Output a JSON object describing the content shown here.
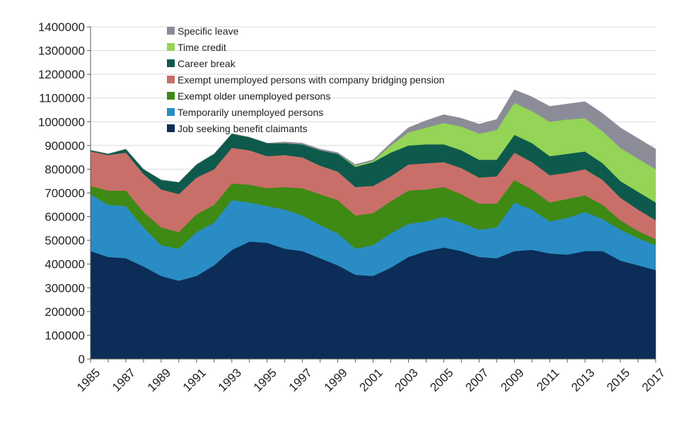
{
  "chart_data": {
    "type": "area",
    "stacked": true,
    "title": "",
    "xlabel": "",
    "ylabel": "",
    "x": [
      1985,
      1986,
      1987,
      1988,
      1989,
      1990,
      1991,
      1992,
      1993,
      1994,
      1995,
      1996,
      1997,
      1998,
      1999,
      2000,
      2001,
      2002,
      2003,
      2004,
      2005,
      2006,
      2007,
      2008,
      2009,
      2010,
      2011,
      2012,
      2013,
      2014,
      2015,
      2016,
      2017
    ],
    "x_tick_labels": [
      "1985",
      "1987",
      "1989",
      "1991",
      "1993",
      "1995",
      "1997",
      "1999",
      "2001",
      "2003",
      "2005",
      "2007",
      "2009",
      "2011",
      "2013",
      "2015",
      "2017"
    ],
    "ylim": [
      0,
      1400000
    ],
    "y_ticks": [
      0,
      100000,
      200000,
      300000,
      400000,
      500000,
      600000,
      700000,
      800000,
      900000,
      1000000,
      1100000,
      1200000,
      1300000,
      1400000
    ],
    "y_tick_labels": [
      "0",
      "100000",
      "200000",
      "300000",
      "400000",
      "500000",
      "600000",
      "700000",
      "800000",
      "900000",
      "1000000",
      "1100000",
      "1200000",
      "1300000",
      "1400000"
    ],
    "legend_position": "top-center",
    "series": [
      {
        "name": "Job seeking benefit claimants",
        "color": "#0b2d57",
        "values": [
          455000,
          430000,
          425000,
          390000,
          350000,
          330000,
          350000,
          395000,
          460000,
          495000,
          490000,
          465000,
          455000,
          425000,
          395000,
          355000,
          350000,
          385000,
          430000,
          455000,
          470000,
          455000,
          430000,
          425000,
          455000,
          460000,
          445000,
          440000,
          455000,
          455000,
          415000,
          395000,
          375000
        ]
      },
      {
        "name": "Temporarily unemployed persons",
        "color": "#2a8cc4",
        "values": [
          240000,
          220000,
          220000,
          165000,
          130000,
          135000,
          185000,
          180000,
          210000,
          165000,
          155000,
          165000,
          150000,
          140000,
          135000,
          110000,
          130000,
          145000,
          140000,
          125000,
          130000,
          120000,
          115000,
          130000,
          205000,
          170000,
          135000,
          155000,
          165000,
          135000,
          130000,
          115000,
          105000
        ]
      },
      {
        "name": "Exempt older unemployed persons",
        "color": "#3e8a14",
        "values": [
          35000,
          60000,
          65000,
          65000,
          75000,
          70000,
          75000,
          75000,
          70000,
          75000,
          75000,
          95000,
          115000,
          130000,
          140000,
          140000,
          135000,
          135000,
          140000,
          135000,
          125000,
          120000,
          110000,
          100000,
          95000,
          85000,
          80000,
          80000,
          70000,
          60000,
          40000,
          30000,
          25000
        ]
      },
      {
        "name": "Exempt unemployed persons with company bridging pension",
        "color": "#c96f69",
        "values": [
          145000,
          150000,
          160000,
          160000,
          160000,
          160000,
          155000,
          150000,
          150000,
          145000,
          135000,
          135000,
          130000,
          120000,
          120000,
          120000,
          115000,
          105000,
          110000,
          110000,
          105000,
          110000,
          110000,
          115000,
          115000,
          115000,
          115000,
          110000,
          110000,
          105000,
          95000,
          90000,
          80000
        ]
      },
      {
        "name": "Career break",
        "color": "#0d5a4c",
        "values": [
          5000,
          5000,
          15000,
          20000,
          40000,
          50000,
          55000,
          65000,
          60000,
          55000,
          55000,
          50000,
          55000,
          65000,
          75000,
          85000,
          100000,
          100000,
          80000,
          80000,
          75000,
          75000,
          75000,
          70000,
          75000,
          80000,
          80000,
          80000,
          75000,
          70000,
          70000,
          75000,
          75000
        ]
      },
      {
        "name": "Time credit",
        "color": "#94d456",
        "values": [
          0,
          0,
          0,
          0,
          0,
          0,
          0,
          0,
          0,
          0,
          0,
          0,
          0,
          0,
          0,
          5000,
          5000,
          30000,
          55000,
          70000,
          90000,
          100000,
          110000,
          125000,
          135000,
          135000,
          145000,
          145000,
          140000,
          135000,
          140000,
          140000,
          140000
        ]
      },
      {
        "name": "Specific leave",
        "color": "#8c8c99",
        "values": [
          0,
          0,
          0,
          0,
          0,
          0,
          0,
          0,
          0,
          0,
          0,
          5000,
          5000,
          5000,
          5000,
          5000,
          5000,
          10000,
          20000,
          30000,
          35000,
          35000,
          40000,
          45000,
          55000,
          60000,
          65000,
          65000,
          70000,
          75000,
          85000,
          85000,
          85000
        ]
      }
    ]
  }
}
